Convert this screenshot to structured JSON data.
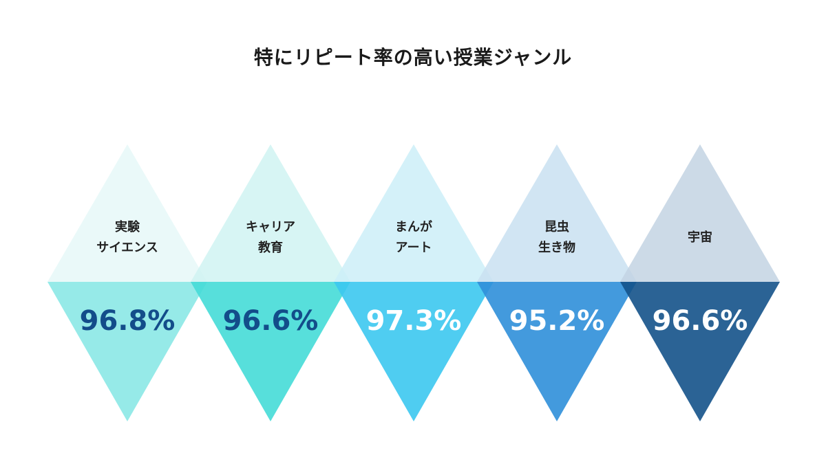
{
  "chart_data": {
    "type": "bar",
    "title": "特にリピート率の高い授業ジャンル",
    "unit": "%",
    "categories": [
      [
        "実験",
        "サイエンス"
      ],
      [
        "キャリア",
        "教育"
      ],
      [
        "まんが",
        "アート"
      ],
      [
        "昆虫",
        "生き物"
      ],
      [
        "宇宙"
      ]
    ],
    "values": [
      96.8,
      96.6,
      97.3,
      95.2,
      96.6
    ],
    "value_labels": [
      "96.8%",
      "96.6%",
      "97.3%",
      "95.2%",
      "96.6%"
    ],
    "colors": {
      "top": [
        "#e6f8f8",
        "#d0f3f2",
        "#cceef8",
        "#c9e0f1",
        "#c3d3e3"
      ],
      "bottom": [
        "#8be8e5",
        "#45dcd7",
        "#3cc8ef",
        "#2f8fd9",
        "#14528a"
      ],
      "value_text": [
        "#134d8a",
        "#134d8a",
        "#ffffff",
        "#ffffff",
        "#ffffff"
      ]
    }
  }
}
